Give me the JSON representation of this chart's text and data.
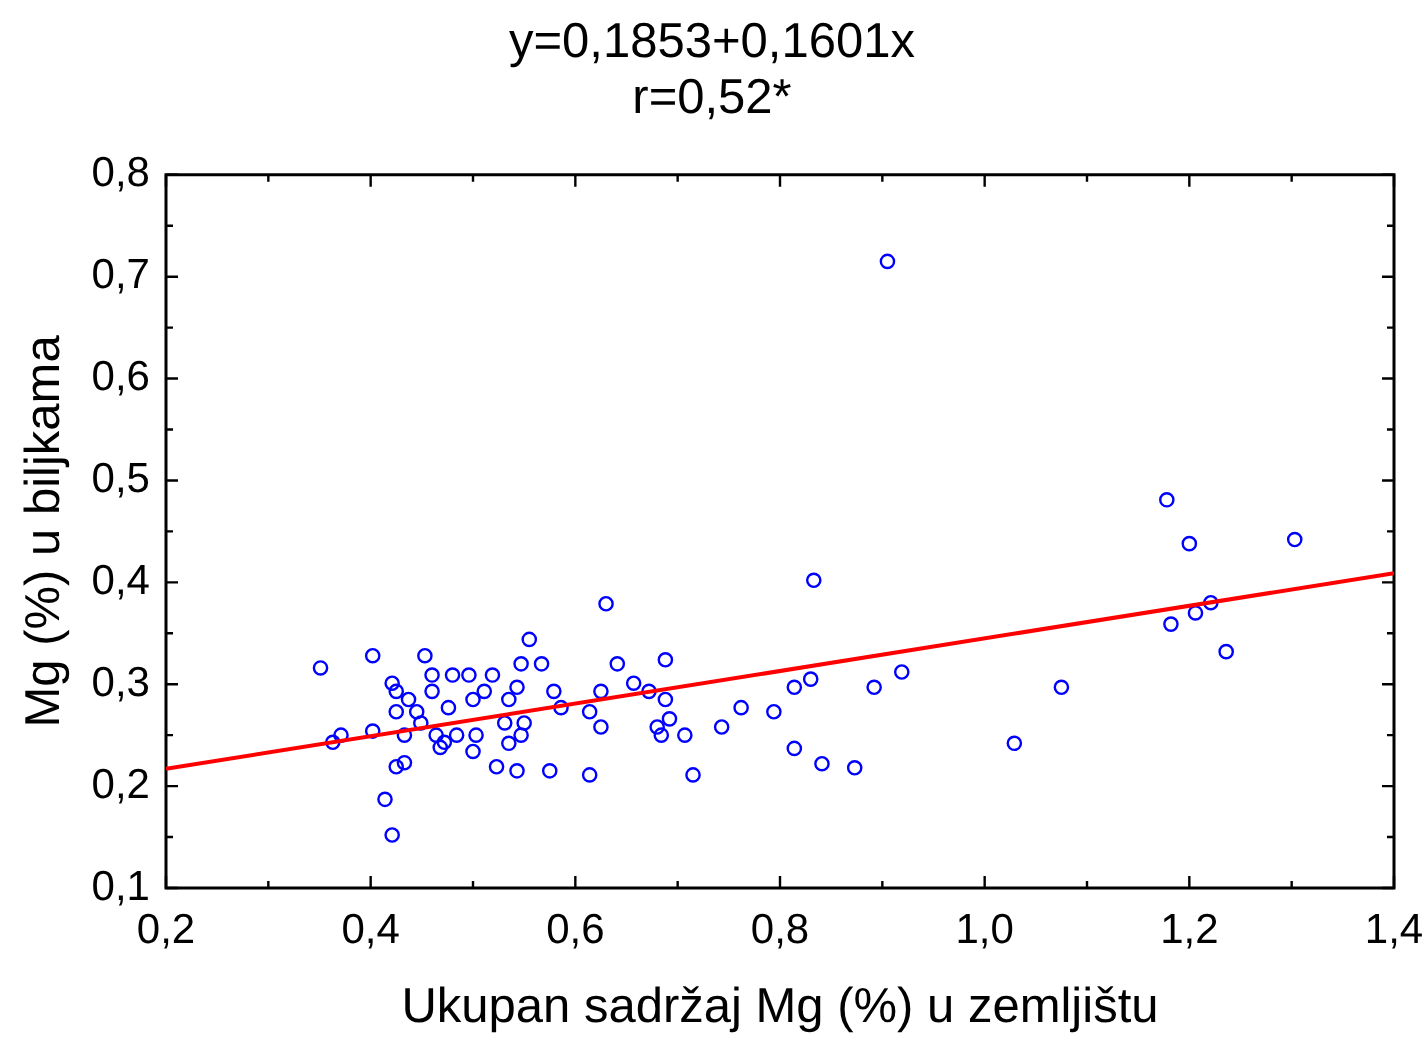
{
  "chart_data": {
    "type": "scatter",
    "title": "y=0,1853+0,1601x",
    "subtitle": "r=0,52*",
    "xlabel": "Ukupan sadržaj Mg (%) u zemljištu",
    "ylabel": "Mg (%) u biljkama",
    "xlim": [
      0.2,
      1.4
    ],
    "ylim": [
      0.1,
      0.8
    ],
    "xticks": [
      {
        "value": 0.2,
        "label": "0,2"
      },
      {
        "value": 0.3,
        "label": null
      },
      {
        "value": 0.4,
        "label": "0,4"
      },
      {
        "value": 0.5,
        "label": null
      },
      {
        "value": 0.6,
        "label": "0,6"
      },
      {
        "value": 0.7,
        "label": null
      },
      {
        "value": 0.8,
        "label": "0,8"
      },
      {
        "value": 0.9,
        "label": null
      },
      {
        "value": 1.0,
        "label": "1,0"
      },
      {
        "value": 1.1,
        "label": null
      },
      {
        "value": 1.2,
        "label": "1,2"
      },
      {
        "value": 1.3,
        "label": null
      },
      {
        "value": 1.4,
        "label": "1,4"
      }
    ],
    "yticks": [
      {
        "value": 0.1,
        "label": "0,1"
      },
      {
        "value": 0.15,
        "label": null
      },
      {
        "value": 0.2,
        "label": "0,2"
      },
      {
        "value": 0.25,
        "label": null
      },
      {
        "value": 0.3,
        "label": "0,3"
      },
      {
        "value": 0.35,
        "label": null
      },
      {
        "value": 0.4,
        "label": "0,4"
      },
      {
        "value": 0.45,
        "label": null
      },
      {
        "value": 0.5,
        "label": "0,5"
      },
      {
        "value": 0.55,
        "label": null
      },
      {
        "value": 0.6,
        "label": "0,6"
      },
      {
        "value": 0.65,
        "label": null
      },
      {
        "value": 0.7,
        "label": "0,7"
      },
      {
        "value": 0.75,
        "label": null
      },
      {
        "value": 0.8,
        "label": "0,8"
      }
    ],
    "marker": "circle",
    "series": [
      {
        "type": "scatter",
        "color": "#0000ff",
        "x": [
          0.351,
          0.363,
          0.371,
          0.402,
          0.402,
          0.414,
          0.421,
          0.421,
          0.425,
          0.425,
          0.425,
          0.433,
          0.433,
          0.437,
          0.445,
          0.449,
          0.453,
          0.46,
          0.46,
          0.464,
          0.468,
          0.472,
          0.476,
          0.48,
          0.484,
          0.496,
          0.5,
          0.5,
          0.503,
          0.511,
          0.519,
          0.523,
          0.531,
          0.535,
          0.535,
          0.543,
          0.543,
          0.547,
          0.547,
          0.55,
          0.555,
          0.567,
          0.579,
          0.575,
          0.586,
          0.614,
          0.614,
          0.625,
          0.625,
          0.63,
          0.641,
          0.657,
          0.672,
          0.68,
          0.684,
          0.688,
          0.688,
          0.692,
          0.707,
          0.715,
          0.743,
          0.762,
          0.794,
          0.814,
          0.814,
          0.83,
          0.833,
          0.841,
          0.873,
          0.892,
          0.905,
          0.919,
          1.029,
          1.075,
          1.178,
          1.182,
          1.2,
          1.206,
          1.221,
          1.236,
          1.303
        ],
        "values": [
          0.316,
          0.243,
          0.25,
          0.328,
          0.254,
          0.187,
          0.152,
          0.301,
          0.293,
          0.273,
          0.219,
          0.223,
          0.25,
          0.285,
          0.273,
          0.262,
          0.328,
          0.309,
          0.293,
          0.25,
          0.238,
          0.243,
          0.277,
          0.309,
          0.25,
          0.309,
          0.285,
          0.234,
          0.25,
          0.293,
          0.309,
          0.219,
          0.262,
          0.285,
          0.242,
          0.297,
          0.215,
          0.32,
          0.25,
          0.262,
          0.344,
          0.32,
          0.293,
          0.215,
          0.277,
          0.273,
          0.211,
          0.293,
          0.258,
          0.379,
          0.32,
          0.301,
          0.293,
          0.258,
          0.25,
          0.324,
          0.285,
          0.266,
          0.25,
          0.211,
          0.258,
          0.277,
          0.273,
          0.297,
          0.237,
          0.305,
          0.402,
          0.222,
          0.218,
          0.297,
          0.715,
          0.312,
          0.242,
          0.297,
          0.481,
          0.359,
          0.438,
          0.37,
          0.38,
          0.332,
          0.442
        ]
      },
      {
        "type": "line",
        "color": "#ff0000",
        "marker": "none",
        "x": [
          0.2,
          1.4
        ],
        "values": [
          0.217,
          0.409
        ]
      }
    ]
  }
}
